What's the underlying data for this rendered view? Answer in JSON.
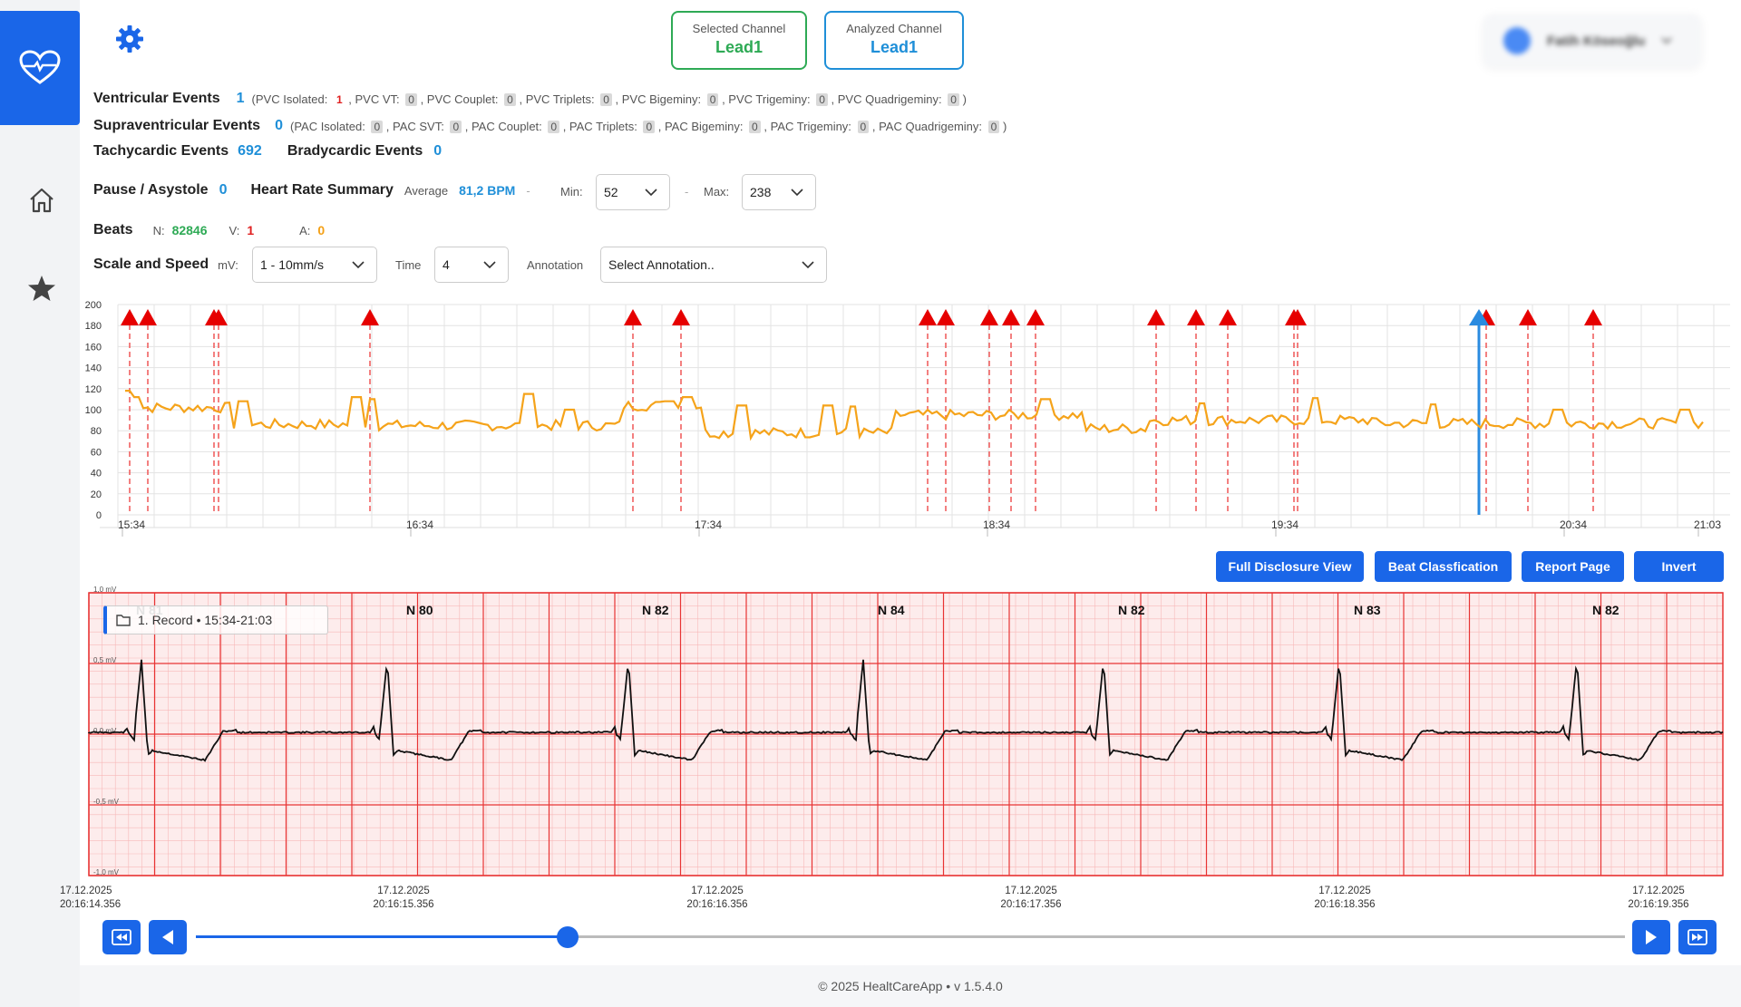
{
  "header": {
    "selected_channel_label": "Selected Channel",
    "selected_channel_value": "Lead1",
    "analyzed_channel_label": "Analyzed Channel",
    "analyzed_channel_value": "Lead1",
    "user_name": "Fatih Köseoğlu"
  },
  "events": {
    "ventricular_label": "Ventricular Events",
    "ventricular_count": "1",
    "ventricular_details": [
      {
        "label": "(PVC Isolated:",
        "value": "1"
      },
      {
        "label": ", PVC VT:",
        "value": "0"
      },
      {
        "label": ", PVC Couplet:",
        "value": "0"
      },
      {
        "label": ", PVC Triplets:",
        "value": "0"
      },
      {
        "label": ", PVC Bigeminy:",
        "value": "0"
      },
      {
        "label": ", PVC Trigeminy:",
        "value": "0"
      },
      {
        "label": ", PVC Quadrigeminy:",
        "value": "0"
      }
    ],
    "supraventricular_label": "Supraventricular Events",
    "supraventricular_count": "0",
    "supraventricular_details": [
      {
        "label": "(PAC Isolated:",
        "value": "0"
      },
      {
        "label": ", PAC SVT:",
        "value": "0"
      },
      {
        "label": ", PAC Couplet:",
        "value": "0"
      },
      {
        "label": ", PAC Triplets:",
        "value": "0"
      },
      {
        "label": ", PAC Bigeminy:",
        "value": "0"
      },
      {
        "label": ", PAC Trigeminy:",
        "value": "0"
      },
      {
        "label": ", PAC Quadrigeminy:",
        "value": "0"
      }
    ],
    "close_paren": ")",
    "tachy_label": "Tachycardic Events",
    "tachy_count": "692",
    "brady_label": "Bradycardic Events",
    "brady_count": "0",
    "pause_label": "Pause / Asystole",
    "pause_count": "0",
    "hr_label": "Heart Rate Summary",
    "hr_avg_label": "Average",
    "hr_avg_value": "81,2 BPM",
    "dash": "-",
    "min_label": "Min:",
    "min_value": "52",
    "max_label": "Max:",
    "max_value": "238",
    "beats_label": "Beats",
    "n_label": "N:",
    "n_value": "82846",
    "v_label": "V:",
    "v_value": "1",
    "a_label": "A:",
    "a_value": "0",
    "scale_label": "Scale and Speed",
    "mv_label": "mV:",
    "mv_value": "1 - 10mm/s",
    "time_label": "Time",
    "time_value": "4",
    "annotation_label": "Annotation",
    "annotation_value": "Select Annotation.."
  },
  "trend_chart": {
    "y_ticks": [
      "200",
      "180",
      "160",
      "140",
      "120",
      "100",
      "80",
      "60",
      "40",
      "20",
      "0"
    ],
    "x_ticks": [
      "15:34",
      "16:34",
      "17:34",
      "18:34",
      "19:34",
      "20:34",
      "21:03"
    ],
    "line_color": "#f5a31a",
    "marker_color": "#e60000",
    "cursor_color": "#2a8be0"
  },
  "buttons": {
    "full_disclosure": "Full Disclosure View",
    "beat_classification": "Beat Classfication",
    "report_page": "Report Page",
    "invert": "Invert"
  },
  "ecg": {
    "record_label": "1. Record • 15:34-21:03",
    "behind_label": "N 81",
    "mv_labels": [
      "1,0 mV",
      "0,5 mV",
      "0,0 mV",
      "-0,5 mV",
      "-1,0 mV"
    ],
    "beat_labels": [
      "N 80",
      "N 82",
      "N 84",
      "N 82",
      "N 83",
      "N 82"
    ],
    "time_labels": [
      {
        "date": "17.12.2025",
        "time": "20:16:14.356"
      },
      {
        "date": "17.12.2025",
        "time": "20:16:15.356"
      },
      {
        "date": "17.12.2025",
        "time": "20:16:16.356"
      },
      {
        "date": "17.12.2025",
        "time": "20:16:17.356"
      },
      {
        "date": "17.12.2025",
        "time": "20:16:18.356"
      },
      {
        "date": "17.12.2025",
        "time": "20:16:19.356"
      }
    ],
    "slider_progress": 0.26
  },
  "footer": {
    "text": "©  2025  HealtCareApp  • v 1.5.4.0"
  }
}
